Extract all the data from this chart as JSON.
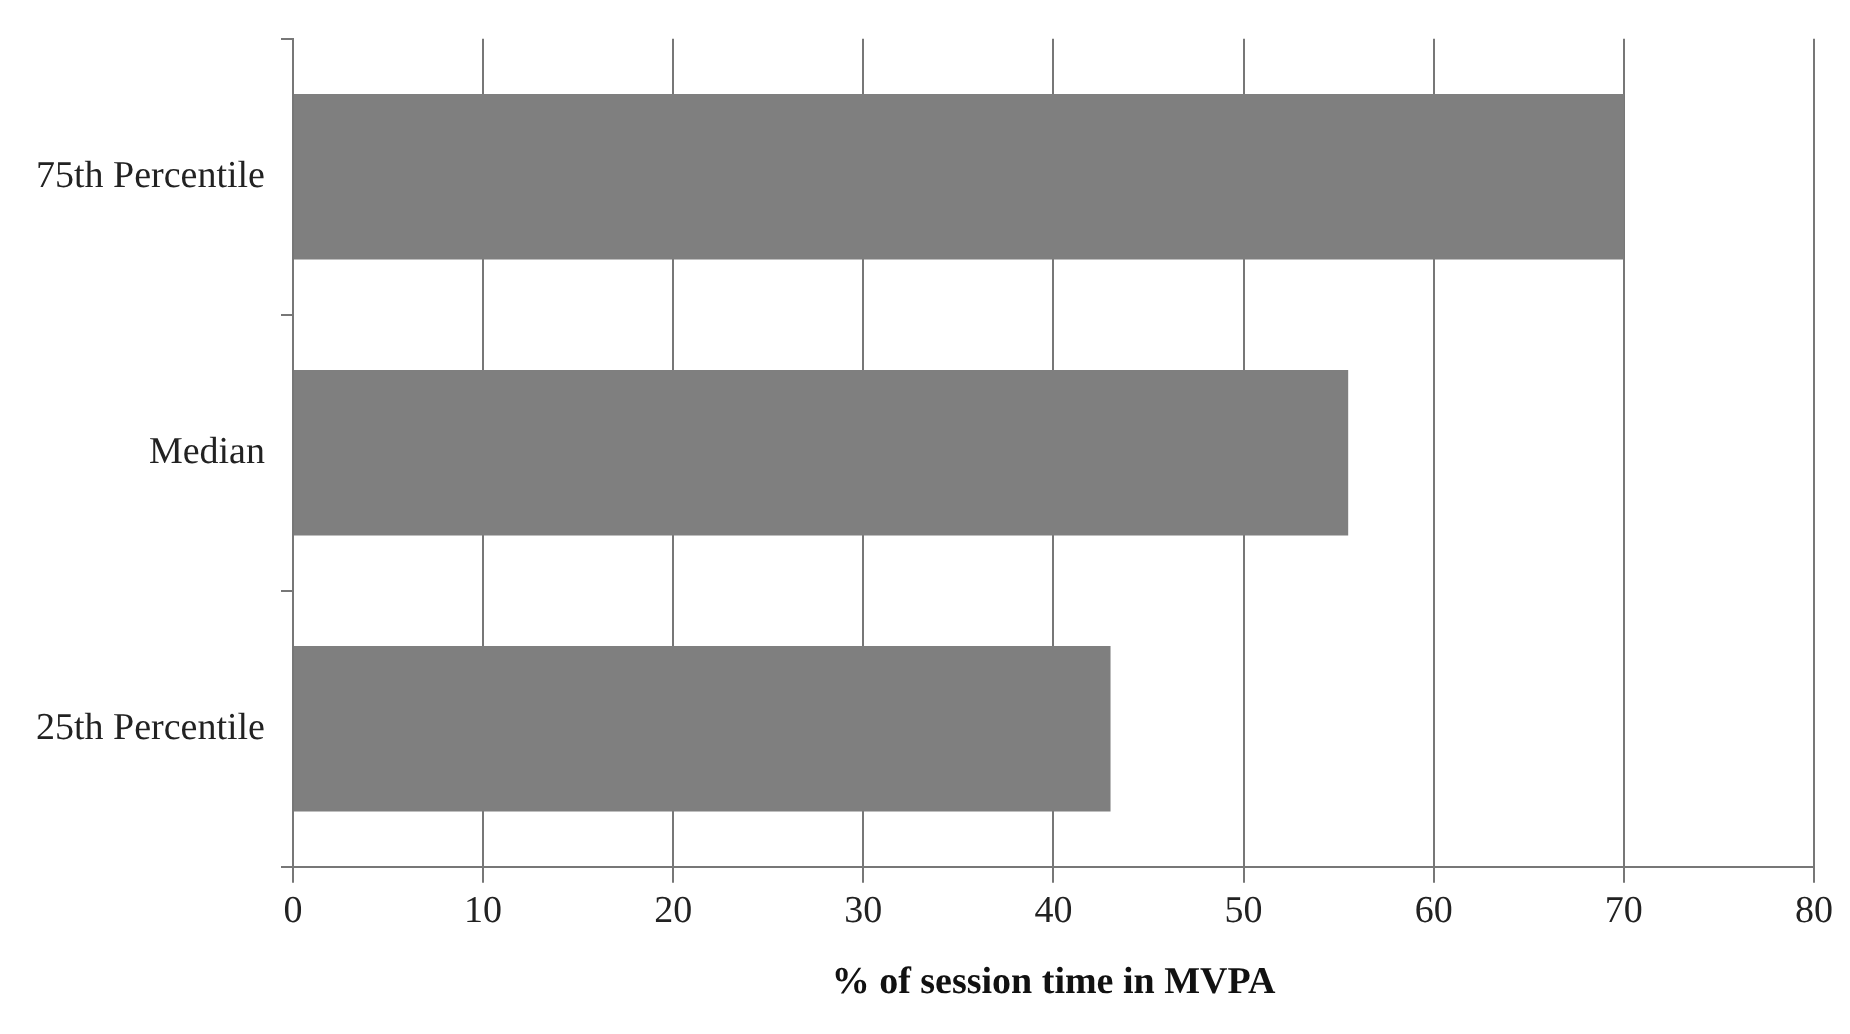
{
  "chart_data": {
    "type": "bar",
    "orientation": "horizontal",
    "xlabel": "% of session time in MVPA",
    "categories": [
      "75th Percentile",
      "Median",
      "25th Percentile"
    ],
    "values": [
      70,
      55.5,
      43
    ],
    "color": "#7f7f7f",
    "xlim": [
      0,
      80
    ],
    "xticks": [
      0,
      10,
      20,
      30,
      40,
      50,
      60,
      70,
      80
    ],
    "grid": "x",
    "legend": false
  }
}
